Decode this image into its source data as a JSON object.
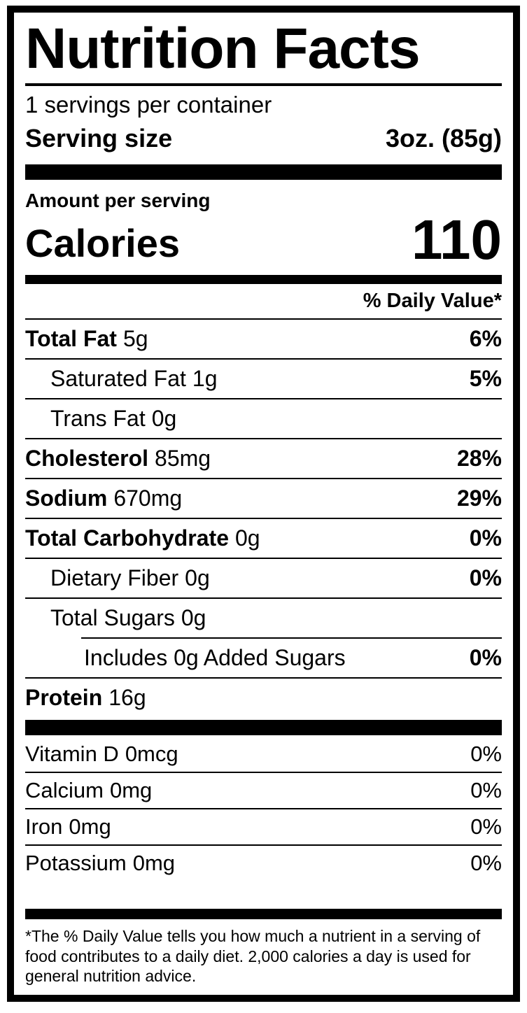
{
  "label": {
    "title": "Nutrition Facts",
    "servings_per_container": "1 servings per container",
    "serving_size": {
      "label": "Serving size",
      "value": "3oz. (85g)"
    },
    "amount_per_serving": "Amount per serving",
    "calories": {
      "label": "Calories",
      "value": "110"
    },
    "daily_value_header": "% Daily Value*",
    "nutrients": [
      {
        "name": "Total Fat",
        "amount": "5g",
        "dv": "6%"
      },
      {
        "name": "Saturated Fat",
        "amount": "1g",
        "dv": "5%"
      },
      {
        "name": "Trans Fat",
        "amount": "0g",
        "dv": ""
      },
      {
        "name": "Cholesterol",
        "amount": "85mg",
        "dv": "28%"
      },
      {
        "name": "Sodium",
        "amount": "670mg",
        "dv": "29%"
      },
      {
        "name": "Total Carbohydrate",
        "amount": "0g",
        "dv": "0%"
      },
      {
        "name": "Dietary Fiber",
        "amount": "0g",
        "dv": "0%"
      },
      {
        "name": "Total Sugars",
        "amount": "0g",
        "dv": ""
      },
      {
        "name": "Includes 0g Added Sugars",
        "amount": "",
        "dv": "0%"
      },
      {
        "name": "Protein",
        "amount": "16g",
        "dv": ""
      }
    ],
    "micronutrients": [
      {
        "name": "Vitamin D",
        "amount": "0mcg",
        "dv": "0%"
      },
      {
        "name": "Calcium",
        "amount": "0mg",
        "dv": "0%"
      },
      {
        "name": "Iron",
        "amount": "0mg",
        "dv": "0%"
      },
      {
        "name": "Potassium",
        "amount": "0mg",
        "dv": "0%"
      }
    ],
    "footnote": "*The % Daily Value tells you how much a nutrient in a serving of food contributes to a daily diet. 2,000 calories a day is used for general nutrition advice."
  },
  "colors": {
    "ink": "#000000",
    "paper": "#ffffff"
  }
}
